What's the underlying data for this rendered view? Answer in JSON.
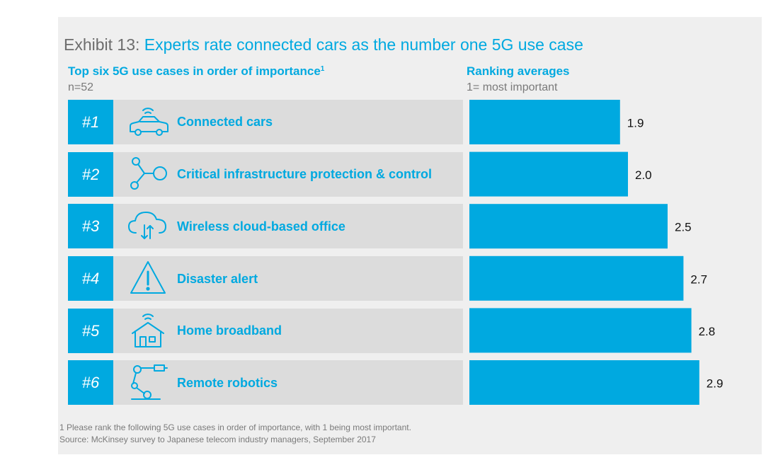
{
  "header": {
    "title_prefix": "Exhibit 13:",
    "title": "Experts rate connected cars as the number one 5G use case",
    "subtitle": "Top six 5G use cases in order of importance",
    "subtitle_note": "1",
    "sample": "n=52",
    "ranking_title": "Ranking averages",
    "ranking_note": "1= most important"
  },
  "rows": [
    {
      "rank": "#1",
      "label": "Connected cars",
      "icon": "connected-car-icon"
    },
    {
      "rank": "#2",
      "label": "Critical infrastructure protection & control",
      "icon": "network-nodes-icon"
    },
    {
      "rank": "#3",
      "label": "Wireless cloud-based office",
      "icon": "cloud-sync-icon"
    },
    {
      "rank": "#4",
      "label": "Disaster alert",
      "icon": "warning-triangle-icon"
    },
    {
      "rank": "#5",
      "label": "Home broadband",
      "icon": "home-wifi-icon"
    },
    {
      "rank": "#6",
      "label": "Remote robotics",
      "icon": "robot-arm-icon"
    }
  ],
  "chart_data": {
    "type": "bar",
    "orientation": "horizontal",
    "title": "Ranking averages",
    "categories": [
      "Connected cars",
      "Critical infrastructure protection & control",
      "Wireless cloud-based office",
      "Disaster alert",
      "Home broadband",
      "Remote robotics"
    ],
    "values": [
      1.9,
      2.0,
      2.5,
      2.7,
      2.8,
      2.9
    ],
    "value_labels": [
      "1.9",
      "2.0",
      "2.5",
      "2.7",
      "2.8",
      "2.9"
    ],
    "grid": false,
    "bar_color": "#00a9e0"
  },
  "footnotes": {
    "note": "1 Please rank the following 5G use cases in order of importance, with 1 being most important.",
    "source": "Source: McKinsey survey to Japanese telecom industry managers, September 2017"
  },
  "colors": {
    "accent": "#00a9e0",
    "panel": "#efefef",
    "row": "#dcdcdc",
    "muted": "#6d6d6d"
  }
}
